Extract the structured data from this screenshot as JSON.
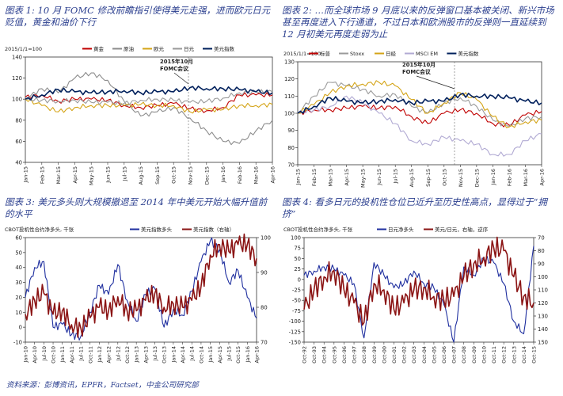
{
  "panels": [
    {
      "title": "图表 1: 10 月 FOMC 修改前瞻指引使得美元走强，进而欧元日元贬值，黄金和油价下行",
      "chart_data": {
        "type": "line",
        "corner_label": "2015/1/1=100",
        "ylim": [
          40,
          140
        ],
        "yticks": [
          40,
          60,
          80,
          100,
          120,
          140
        ],
        "categories": [
          "Jan-15",
          "Feb-15",
          "Mar-15",
          "Apr-15",
          "May-15",
          "Jun-15",
          "Jul-15",
          "Aug-15",
          "Sep-15",
          "Oct-15",
          "Nov-15",
          "Dec-15",
          "Jan-16",
          "Feb-16",
          "Mar-16",
          "Apr-16"
        ],
        "annotation": [
          "2015年10月",
          "FOMC会议"
        ],
        "series": [
          {
            "name": "黄金",
            "color": "#c00000",
            "values": [
              102,
              104,
              98,
              100,
              100,
              99,
              94,
              92,
              94,
              96,
              91,
              89,
              92,
              104,
              104,
              104
            ]
          },
          {
            "name": "原油",
            "color": "#8c8c8c",
            "values": [
              100,
              110,
              106,
              120,
              125,
              118,
              98,
              84,
              88,
              92,
              82,
              70,
              60,
              58,
              70,
              80
            ]
          },
          {
            "name": "欧元",
            "color": "#d4a417",
            "values": [
              100,
              94,
              88,
              92,
              94,
              94,
              94,
              95,
              94,
              94,
              88,
              90,
              90,
              94,
              94,
              95
            ]
          },
          {
            "name": "日元",
            "color": "#ffffff",
            "values": [
              100,
              99,
              98,
              99,
              97,
              97,
              96,
              99,
              100,
              99,
              97,
              98,
              101,
              106,
              107,
              107
            ]
          },
          {
            "name": "美元指数",
            "color": "#00205c",
            "values": [
              100,
              104,
              109,
              107,
              106,
              107,
              108,
              106,
              107,
              107,
              111,
              110,
              110,
              109,
              107,
              106
            ]
          }
        ]
      }
    },
    {
      "title": "图表 2: …而全球市场 9 月底以来的反弹窗口基本被关闭、新兴市场甚至再度进入下行通道，不过日本和欧洲股市的反弹则一直延续到 12 月初美元再度走弱为止",
      "chart_data": {
        "type": "line",
        "corner_label": "2015/1/1=100",
        "ylim": [
          70,
          130
        ],
        "yticks": [
          70,
          80,
          90,
          100,
          110,
          120,
          130
        ],
        "categories": [
          "Jan-15",
          "Feb-15",
          "Mar-15",
          "Apr-15",
          "May-15",
          "Jun-15",
          "Jul-15",
          "Aug-15",
          "Sep-15",
          "Oct-15",
          "Nov-15",
          "Dec-15",
          "Jan-16",
          "Feb-16",
          "Mar-16",
          "Apr-16"
        ],
        "annotation": [
          "2015年10月",
          "FOMC会议"
        ],
        "series": [
          {
            "name": "标普",
            "color": "#c00000",
            "values": [
              100,
              102,
              102,
              103,
              104,
              103,
              104,
              98,
              94,
              100,
              102,
              100,
              94,
              93,
              99,
              101
            ]
          },
          {
            "name": "Stoxx",
            "color": "#9a9a9a",
            "values": [
              100,
              110,
              118,
              116,
              114,
              110,
              111,
              104,
              100,
              106,
              109,
              104,
              96,
              92,
              97,
              98
            ]
          },
          {
            "name": "日经",
            "color": "#d4a417",
            "values": [
              100,
              105,
              112,
              116,
              117,
              118,
              116,
              108,
              100,
              106,
              112,
              108,
              98,
              92,
              95,
              96
            ]
          },
          {
            "name": "MSCI EM",
            "color": "#b1aad3",
            "values": [
              100,
              102,
              104,
              110,
              106,
              100,
              94,
              84,
              82,
              86,
              84,
              82,
              76,
              76,
              84,
              88
            ]
          },
          {
            "name": "美元指数",
            "color": "#00205c",
            "values": [
              100,
              104,
              109,
              107,
              106,
              107,
              108,
              106,
              107,
              107,
              111,
              110,
              110,
              109,
              107,
              106
            ]
          }
        ]
      }
    },
    {
      "title": "图表 3: 美元多头则大规模撤退至 2014 年中美元开始大幅升值前的水平",
      "chart_data": {
        "type": "line",
        "corner_label": "CBOT投机性合约净多头, 千张",
        "ylim": [
          -10,
          60
        ],
        "yticks": [
          -10,
          0,
          10,
          20,
          30,
          40,
          50,
          60
        ],
        "y2lim": [
          70,
          100
        ],
        "y2ticks": [
          70,
          80,
          90,
          100
        ],
        "categories": [
          "Jan-10",
          "Apr-10",
          "Jul-10",
          "Oct-10",
          "Jan-11",
          "Apr-11",
          "Jul-11",
          "Oct-11",
          "Jan-12",
          "Apr-12",
          "Jul-12",
          "Oct-12",
          "Jan-13",
          "Apr-13",
          "Jul-13",
          "Oct-13",
          "Jan-14",
          "Apr-14",
          "Jul-14",
          "Oct-14",
          "Jan-15",
          "Apr-15",
          "Jul-15",
          "Oct-15",
          "Jan-16",
          "Apr-16"
        ],
        "series": [
          {
            "name": "美元指数多头",
            "color": "#1f2f9f",
            "axis": "left",
            "values": [
              20,
              40,
              44,
              0,
              2,
              -5,
              -6,
              10,
              28,
              22,
              42,
              18,
              4,
              22,
              26,
              0,
              12,
              8,
              24,
              44,
              58,
              52,
              30,
              38,
              20,
              6
            ]
          },
          {
            "name": "美元指数（右轴）",
            "color": "#8b1414",
            "axis": "right",
            "values": [
              78,
              82,
              84,
              78,
              79,
              75,
              74,
              77,
              80,
              79,
              83,
              79,
              79,
              82,
              84,
              80,
              81,
              80,
              82,
              86,
              95,
              98,
              96,
              98,
              98,
              94
            ]
          }
        ]
      }
    },
    {
      "title": "图表 4: 看多日元的投机性仓位已近升至历史性高点，显得过于“拥挤”",
      "chart_data": {
        "type": "line",
        "corner_label": "CBOT投机性合约净多头, 千张",
        "ylim": [
          -150,
          100
        ],
        "yticks": [
          -150,
          -125,
          -100,
          -75,
          -50,
          -25,
          0,
          25,
          50,
          75,
          100
        ],
        "y2lim": [
          150,
          70
        ],
        "y2ticks": [
          70,
          80,
          90,
          100,
          110,
          120,
          130,
          140,
          150
        ],
        "categories": [
          "Oct-92",
          "Oct-93",
          "Oct-94",
          "Oct-95",
          "Oct-96",
          "Oct-97",
          "Oct-98",
          "Oct-99",
          "Oct-00",
          "Oct-01",
          "Oct-02",
          "Oct-03",
          "Oct-04",
          "Oct-05",
          "Oct-06",
          "Oct-07",
          "Oct-08",
          "Oct-09",
          "Oct-10",
          "Oct-11",
          "Oct-12",
          "Oct-13",
          "Oct-14",
          "Oct-15"
        ],
        "series": [
          {
            "name": "日元净多头",
            "color": "#1f2f9f",
            "axis": "left",
            "values": [
              10,
              20,
              30,
              25,
              10,
              -10,
              -140,
              40,
              10,
              -20,
              -10,
              20,
              -10,
              -20,
              -60,
              -150,
              30,
              10,
              50,
              40,
              -10,
              -100,
              -130,
              80
            ]
          },
          {
            "name": "美元/日元，右轴，逆序",
            "color": "#8b1414",
            "axis": "right",
            "values": [
              125,
              110,
              100,
              95,
              110,
              120,
              135,
              105,
              110,
              125,
              120,
              110,
              108,
              115,
              118,
              115,
              100,
              90,
              85,
              78,
              80,
              100,
              115,
              120
            ]
          }
        ]
      }
    }
  ],
  "source": "资料来源：彭博资讯，EPFR，Factset，中金公司研究部"
}
